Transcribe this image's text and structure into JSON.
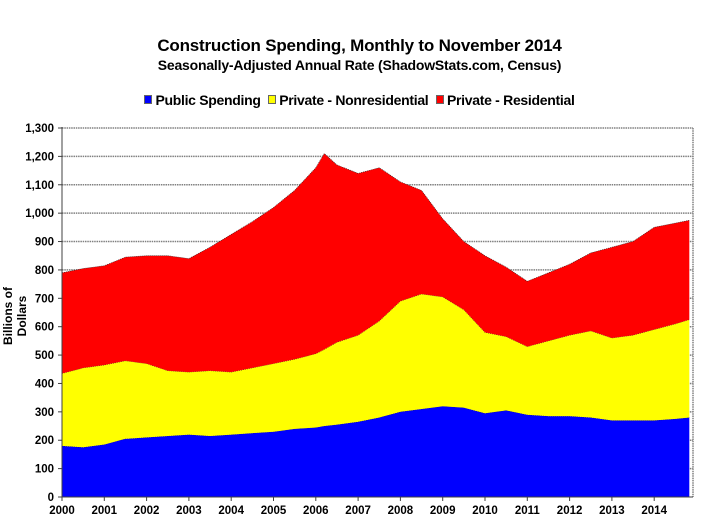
{
  "chart_data": {
    "type": "area",
    "stacked": true,
    "title": "Construction Spending, Monthly to November 2014",
    "subtitle": "Seasonally-Adjusted Annual Rate (ShadowStats.com, Census)",
    "xlabel": "",
    "ylabel": "Billions  of Dollars",
    "ylim": [
      0,
      1300
    ],
    "xlim": [
      2000,
      2014.917
    ],
    "grid": true,
    "legend_position": "top",
    "y_ticks": [
      "0",
      "100",
      "200",
      "300",
      "400",
      "500",
      "600",
      "700",
      "800",
      "900",
      "1,000",
      "1,100",
      "1,200",
      "1,300"
    ],
    "y_tick_values": [
      0,
      100,
      200,
      300,
      400,
      500,
      600,
      700,
      800,
      900,
      1000,
      1100,
      1200,
      1300
    ],
    "x_ticks": [
      "2000",
      "2001",
      "2002",
      "2003",
      "2004",
      "2005",
      "2006",
      "2007",
      "2008",
      "2009",
      "2010",
      "2011",
      "2012",
      "2013",
      "2014"
    ],
    "x": [
      2000.0,
      2000.5,
      2001.0,
      2001.5,
      2002.0,
      2002.5,
      2003.0,
      2003.5,
      2004.0,
      2004.5,
      2005.0,
      2005.5,
      2006.0,
      2006.2,
      2006.5,
      2007.0,
      2007.5,
      2008.0,
      2008.5,
      2009.0,
      2009.5,
      2010.0,
      2010.5,
      2011.0,
      2011.5,
      2012.0,
      2012.5,
      2013.0,
      2013.5,
      2014.0,
      2014.5,
      2014.83
    ],
    "series": [
      {
        "name": "Public Spending",
        "color": "#0000ff",
        "values": [
          180,
          175,
          185,
          205,
          210,
          215,
          220,
          215,
          220,
          225,
          230,
          240,
          245,
          250,
          255,
          265,
          280,
          300,
          310,
          320,
          315,
          295,
          305,
          290,
          285,
          285,
          280,
          270,
          270,
          270,
          275,
          280
        ]
      },
      {
        "name": "Private - Nonresidential",
        "color": "#ffff00",
        "values": [
          255,
          280,
          280,
          275,
          260,
          230,
          220,
          230,
          220,
          230,
          240,
          245,
          260,
          270,
          290,
          305,
          340,
          390,
          405,
          385,
          345,
          285,
          260,
          240,
          265,
          285,
          305,
          290,
          300,
          320,
          335,
          345
        ]
      },
      {
        "name": "Private - Residential",
        "color": "#ff0000",
        "values": [
          355,
          350,
          350,
          365,
          380,
          405,
          400,
          435,
          485,
          515,
          550,
          595,
          655,
          690,
          625,
          570,
          540,
          420,
          365,
          275,
          240,
          270,
          245,
          230,
          240,
          250,
          275,
          320,
          330,
          360,
          355,
          350
        ]
      }
    ]
  }
}
